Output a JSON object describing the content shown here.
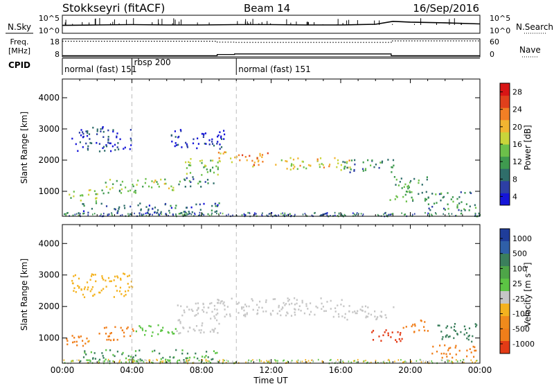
{
  "header": {
    "title": "Stokkseyri (fitACF)",
    "beam": "Beam 14",
    "date": "16/Sep/2016"
  },
  "sky_panel": {
    "left_label": "N.Sky",
    "right_label": "N.Search",
    "left_ticks": [
      "10^5",
      "10^0"
    ],
    "right_ticks": [
      "10^5",
      "10^0"
    ]
  },
  "freq_panel": {
    "label_line1": "Freq.",
    "label_line2": "[MHz]",
    "right_label": "Nave",
    "left_ticks": [
      "18",
      "8"
    ],
    "right_ticks": [
      "60",
      "0"
    ]
  },
  "cpid": {
    "label": "CPID",
    "segments": [
      {
        "label": "normal (fast) 151",
        "start_hour": 0
      },
      {
        "label": "rbsp 200",
        "start_hour": 4.0
      },
      {
        "label": "normal (fast) 151",
        "start_hour": 10.0
      }
    ]
  },
  "x_axis": {
    "ticks": [
      "00:00",
      "04:00",
      "08:00",
      "12:00",
      "16:00",
      "20:00",
      "00:00"
    ],
    "label": "Time UT"
  },
  "power_panel": {
    "ylabel": "Slant Range [km]",
    "yticks": [
      "1000",
      "2000",
      "3000",
      "4000"
    ],
    "colorbar_label": "Power [dB]",
    "colorbar_ticks": [
      "4",
      "8",
      "12",
      "16",
      "20",
      "24",
      "28"
    ]
  },
  "velocity_panel": {
    "ylabel": "Slant Range [km]",
    "yticks": [
      "1000",
      "2000",
      "3000",
      "4000"
    ],
    "colorbar_label": "Velocity [m s⁻¹]",
    "colorbar_ticks": [
      "1000",
      "500",
      "100",
      "25",
      "-25",
      "-100",
      "-500",
      "-1000"
    ]
  },
  "chart_data": [
    {
      "type": "line",
      "title": "N.Sky",
      "x": [
        0,
        2,
        4,
        6,
        8,
        10,
        12,
        14,
        16,
        18,
        19,
        20,
        22,
        24
      ],
      "values": [
        2.2,
        2.3,
        2.4,
        2.3,
        2.3,
        2.4,
        2.4,
        2.3,
        2.3,
        2.5,
        3.3,
        3.1,
        2.9,
        2.6
      ],
      "yscale": "log",
      "ylim": [
        0,
        5
      ],
      "xlim": [
        0,
        24
      ]
    },
    {
      "type": "line",
      "title": "Freq.",
      "x": [
        0,
        8.9,
        8.9,
        9.9,
        9.9,
        18.9,
        18.9,
        24
      ],
      "values": [
        8.6,
        8.6,
        9.3,
        9.3,
        9.6,
        9.6,
        8.6,
        8.6
      ],
      "ylim": [
        8,
        18
      ],
      "xlim": [
        0,
        24
      ]
    },
    {
      "type": "line",
      "title": "Nave",
      "x": [
        0,
        8.9,
        8.9,
        9.9,
        9.9,
        18.9,
        18.9,
        24
      ],
      "values": [
        52,
        52,
        49,
        49,
        48,
        48,
        53,
        53
      ],
      "ylim": [
        0,
        60
      ],
      "xlim": [
        0,
        24
      ]
    },
    {
      "type": "heatmap",
      "title": "Power [dB]",
      "xlim": [
        0,
        24
      ],
      "ylim": [
        200,
        4600
      ],
      "patches": [
        {
          "x": [
            0.2,
            2.0
          ],
          "y": [
            700,
            1100
          ],
          "value": 16
        },
        {
          "x": [
            2.0,
            4.2
          ],
          "y": [
            950,
            1400
          ],
          "value": 14
        },
        {
          "x": [
            4.2,
            6.5
          ],
          "y": [
            1050,
            1450
          ],
          "value": 16
        },
        {
          "x": [
            6.5,
            8.7
          ],
          "y": [
            1150,
            1500
          ],
          "value": 10
        },
        {
          "x": [
            7.0,
            9.0
          ],
          "y": [
            1550,
            2150
          ],
          "value": 14
        },
        {
          "x": [
            8.7,
            10.0
          ],
          "y": [
            1900,
            2300
          ],
          "value": 20
        },
        {
          "x": [
            10.0,
            12.0
          ],
          "y": [
            1800,
            2250
          ],
          "value": 22
        },
        {
          "x": [
            12.0,
            16.5
          ],
          "y": [
            1700,
            2100
          ],
          "value": 18
        },
        {
          "x": [
            16.0,
            19.0
          ],
          "y": [
            1600,
            2050
          ],
          "value": 10
        },
        {
          "x": [
            18.8,
            21.0
          ],
          "y": [
            700,
            1500
          ],
          "value": 12
        },
        {
          "x": [
            21.0,
            23.8
          ],
          "y": [
            400,
            1000
          ],
          "value": 10
        },
        {
          "x": [
            0.5,
            4.0
          ],
          "y": [
            2300,
            3100
          ],
          "value": 6
        },
        {
          "x": [
            6.2,
            9.3
          ],
          "y": [
            2350,
            3000
          ],
          "value": 5
        },
        {
          "x": [
            1.0,
            9.0
          ],
          "y": [
            280,
            650
          ],
          "value": 8
        }
      ]
    },
    {
      "type": "heatmap",
      "title": "Velocity [m s⁻¹]",
      "xlim": [
        0,
        24
      ],
      "ylim": [
        200,
        4600
      ],
      "patches": [
        {
          "x": [
            0.2,
            2.0
          ],
          "y": [
            700,
            1100
          ],
          "value": -150
        },
        {
          "x": [
            2.0,
            4.2
          ],
          "y": [
            950,
            1400
          ],
          "value": -200
        },
        {
          "x": [
            4.2,
            6.5
          ],
          "y": [
            1050,
            1450
          ],
          "value": 60
        },
        {
          "x": [
            6.5,
            9.0
          ],
          "y": [
            1150,
            2150
          ],
          "value": 0
        },
        {
          "x": [
            8.7,
            16.5
          ],
          "y": [
            1700,
            2300
          ],
          "value": 0
        },
        {
          "x": [
            16.0,
            19.0
          ],
          "y": [
            1600,
            2050
          ],
          "value": 10
        },
        {
          "x": [
            17.5,
            19.5
          ],
          "y": [
            900,
            1300
          ],
          "value": -600
        },
        {
          "x": [
            19.5,
            21.0
          ],
          "y": [
            1200,
            1600
          ],
          "value": -300
        },
        {
          "x": [
            21.5,
            23.8
          ],
          "y": [
            900,
            1500
          ],
          "value": 400
        },
        {
          "x": [
            21.0,
            23.8
          ],
          "y": [
            400,
            800
          ],
          "value": -300
        },
        {
          "x": [
            1.0,
            9.0
          ],
          "y": [
            280,
            650
          ],
          "value": 120
        },
        {
          "x": [
            0.5,
            4.0
          ],
          "y": [
            2300,
            3100
          ],
          "value": -80
        }
      ]
    }
  ]
}
